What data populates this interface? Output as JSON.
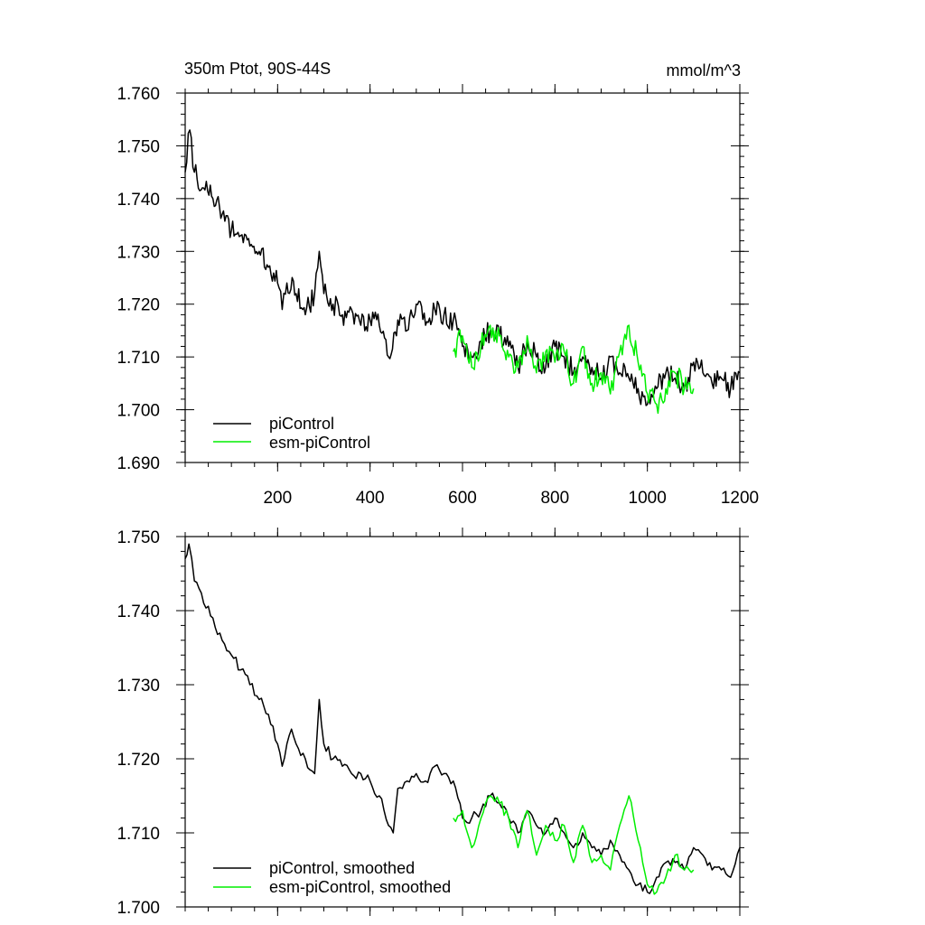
{
  "chart_data": [
    {
      "type": "line",
      "title_left": "350m Ptot, 90S-44S",
      "title_right": "mmol/m^3",
      "xlabel": "",
      "ylabel": "",
      "xlim": [
        0,
        1200
      ],
      "ylim": [
        1.69,
        1.76
      ],
      "x_ticks": [
        200,
        400,
        600,
        800,
        1000,
        1200
      ],
      "x_tick_labels": [
        "200",
        "400",
        "600",
        "800",
        "1000",
        "1200"
      ],
      "y_ticks": [
        1.69,
        1.7,
        1.71,
        1.72,
        1.73,
        1.74,
        1.75,
        1.76
      ],
      "y_tick_labels": [
        "1.690",
        "1.700",
        "1.710",
        "1.720",
        "1.730",
        "1.740",
        "1.750",
        "1.760"
      ],
      "legend": [
        {
          "name": "piControl",
          "color": "#000000"
        },
        {
          "name": "esm-piControl",
          "color": "#00ee00"
        }
      ],
      "series": [
        {
          "name": "piControl",
          "color": "#000000",
          "x": [
            0,
            10,
            20,
            40,
            60,
            80,
            100,
            120,
            140,
            160,
            180,
            200,
            210,
            220,
            240,
            260,
            280,
            290,
            300,
            320,
            340,
            360,
            380,
            400,
            420,
            440,
            460,
            480,
            500,
            520,
            540,
            560,
            580,
            600,
            620,
            640,
            660,
            680,
            700,
            720,
            740,
            760,
            780,
            800,
            820,
            840,
            860,
            880,
            900,
            920,
            940,
            960,
            980,
            1000,
            1020,
            1040,
            1060,
            1080,
            1100,
            1120,
            1140,
            1160,
            1180,
            1200
          ],
          "y": [
            1.745,
            1.753,
            1.745,
            1.742,
            1.74,
            1.737,
            1.734,
            1.733,
            1.731,
            1.73,
            1.727,
            1.724,
            1.719,
            1.724,
            1.722,
            1.718,
            1.722,
            1.73,
            1.722,
            1.72,
            1.718,
            1.719,
            1.716,
            1.717,
            1.716,
            1.71,
            1.717,
            1.715,
            1.72,
            1.716,
            1.719,
            1.718,
            1.717,
            1.712,
            1.71,
            1.713,
            1.715,
            1.714,
            1.712,
            1.708,
            1.713,
            1.71,
            1.708,
            1.712,
            1.71,
            1.707,
            1.71,
            1.708,
            1.706,
            1.71,
            1.707,
            1.706,
            1.704,
            1.701,
            1.704,
            1.707,
            1.706,
            1.704,
            1.709,
            1.707,
            1.705,
            1.706,
            1.704,
            1.707
          ]
        },
        {
          "name": "esm-piControl",
          "color": "#00ee00",
          "x": [
            580,
            600,
            620,
            640,
            660,
            680,
            700,
            720,
            740,
            760,
            780,
            800,
            820,
            840,
            860,
            880,
            900,
            920,
            940,
            960,
            980,
            1000,
            1020,
            1040,
            1060,
            1080,
            1100
          ],
          "y": [
            1.711,
            1.714,
            1.708,
            1.712,
            1.716,
            1.714,
            1.71,
            1.708,
            1.714,
            1.707,
            1.711,
            1.709,
            1.711,
            1.705,
            1.712,
            1.705,
            1.707,
            1.703,
            1.711,
            1.716,
            1.709,
            1.703,
            1.701,
            1.704,
            1.707,
            1.704,
            1.704
          ]
        }
      ]
    },
    {
      "type": "line",
      "xlim": [
        0,
        1200
      ],
      "ylim": [
        1.7,
        1.75
      ],
      "y_ticks": [
        1.7,
        1.71,
        1.72,
        1.73,
        1.74,
        1.75
      ],
      "y_tick_labels": [
        "1.700",
        "1.710",
        "1.720",
        "1.730",
        "1.740",
        "1.750"
      ],
      "legend": [
        {
          "name": "piControl, smoothed",
          "color": "#000000"
        },
        {
          "name": "esm-piControl, smoothed",
          "color": "#00ee00"
        }
      ],
      "series": [
        {
          "name": "piControl, smoothed",
          "color": "#000000",
          "x": [
            0,
            8,
            20,
            40,
            60,
            80,
            100,
            120,
            140,
            160,
            180,
            200,
            210,
            220,
            230,
            240,
            260,
            280,
            290,
            300,
            320,
            340,
            360,
            380,
            400,
            420,
            440,
            450,
            460,
            480,
            500,
            520,
            540,
            560,
            580,
            600,
            620,
            640,
            660,
            680,
            700,
            720,
            740,
            760,
            780,
            800,
            820,
            840,
            860,
            880,
            900,
            920,
            940,
            960,
            980,
            1000,
            1020,
            1040,
            1060,
            1080,
            1100,
            1120,
            1140,
            1160,
            1180,
            1200
          ],
          "y": [
            1.747,
            1.749,
            1.744,
            1.741,
            1.739,
            1.736,
            1.734,
            1.732,
            1.73,
            1.728,
            1.726,
            1.722,
            1.719,
            1.722,
            1.724,
            1.722,
            1.72,
            1.718,
            1.728,
            1.722,
            1.72,
            1.719,
            1.718,
            1.718,
            1.717,
            1.715,
            1.711,
            1.71,
            1.716,
            1.717,
            1.718,
            1.717,
            1.719,
            1.718,
            1.717,
            1.712,
            1.712,
            1.713,
            1.715,
            1.714,
            1.712,
            1.71,
            1.713,
            1.711,
            1.71,
            1.712,
            1.71,
            1.708,
            1.71,
            1.708,
            1.707,
            1.709,
            1.707,
            1.705,
            1.703,
            1.702,
            1.704,
            1.706,
            1.706,
            1.705,
            1.708,
            1.707,
            1.705,
            1.705,
            1.704,
            1.708
          ]
        },
        {
          "name": "esm-piControl, smoothed",
          "color": "#00ee00",
          "x": [
            580,
            600,
            620,
            640,
            660,
            680,
            700,
            720,
            740,
            760,
            780,
            800,
            820,
            840,
            860,
            880,
            900,
            920,
            940,
            960,
            980,
            1000,
            1020,
            1040,
            1060,
            1080,
            1100
          ],
          "y": [
            1.712,
            1.713,
            1.708,
            1.712,
            1.715,
            1.714,
            1.712,
            1.708,
            1.713,
            1.707,
            1.711,
            1.709,
            1.711,
            1.706,
            1.711,
            1.706,
            1.707,
            1.705,
            1.711,
            1.715,
            1.709,
            1.703,
            1.702,
            1.704,
            1.707,
            1.705,
            1.705
          ]
        }
      ]
    }
  ]
}
